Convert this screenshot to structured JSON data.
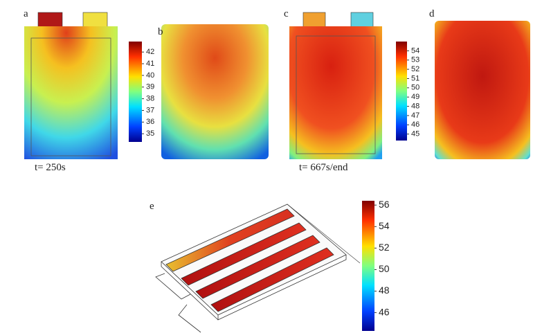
{
  "panels": {
    "a": "a",
    "b": "b",
    "c": "c",
    "d": "d",
    "e": "e"
  },
  "time_labels": {
    "first": "t= 250s",
    "second": "t= 667s/end"
  },
  "colorbars": [
    {
      "lim": [
        34.3,
        42.9
      ],
      "ticks": [
        35,
        36,
        37,
        38,
        39,
        40,
        41,
        42
      ]
    },
    {
      "lim": [
        44.3,
        55
      ],
      "ticks": [
        45,
        46,
        47,
        48,
        49,
        50,
        51,
        52,
        53,
        54
      ]
    },
    {
      "lim": [
        44.3,
        56.4
      ],
      "ticks": [
        46,
        48,
        50,
        52,
        54,
        56
      ]
    }
  ]
}
